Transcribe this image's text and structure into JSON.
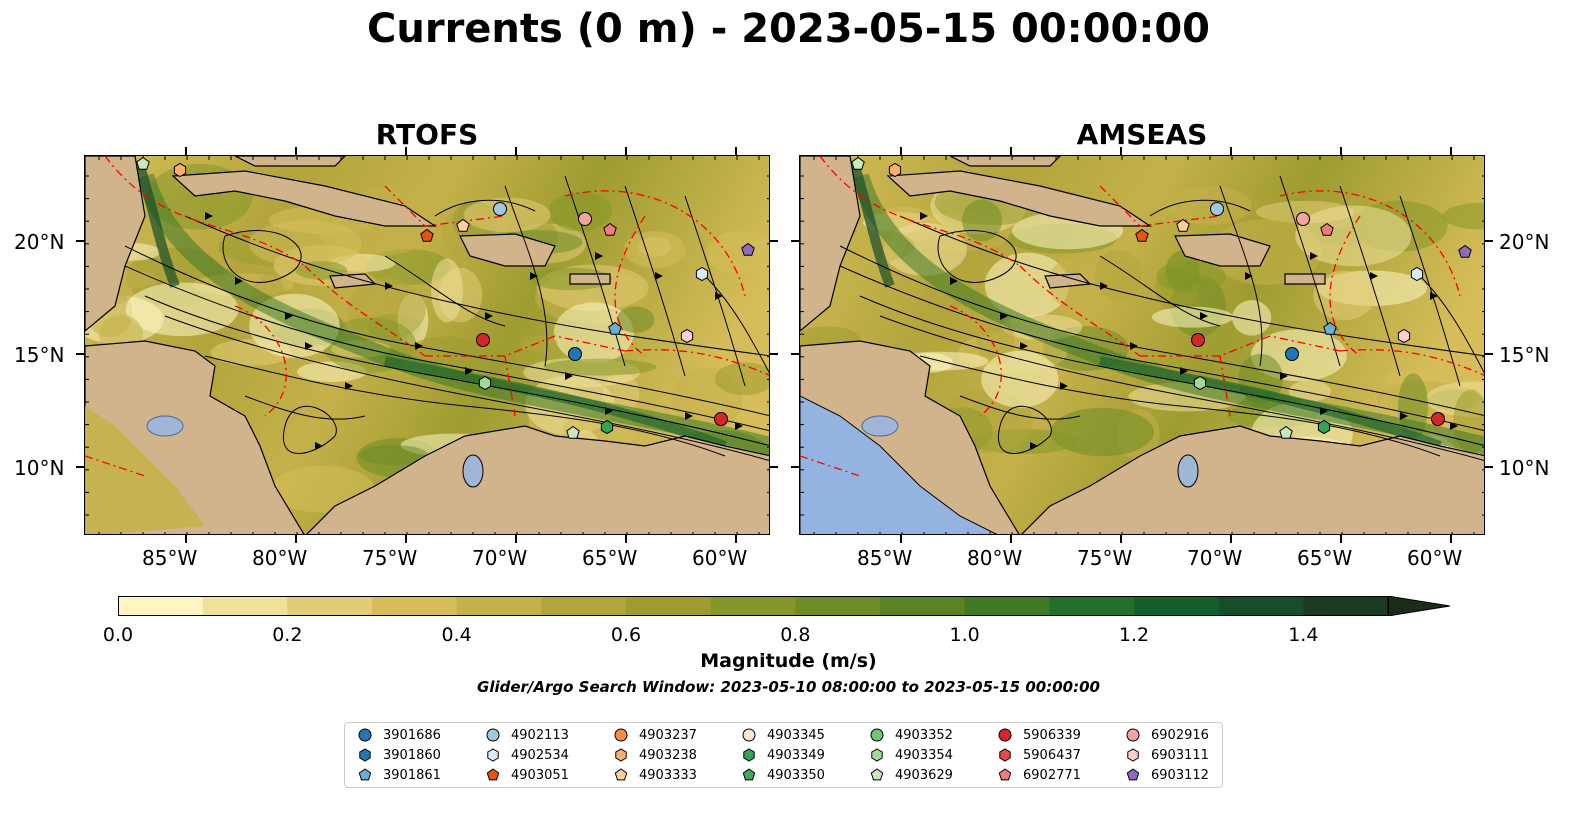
{
  "title": "Currents (0 m) - 2023-05-15 00:00:00",
  "panels": [
    {
      "id": "rtofs",
      "title": "RTOFS"
    },
    {
      "id": "amseas",
      "title": "AMSEAS"
    }
  ],
  "axes": {
    "lon_ticks": [
      "85°W",
      "80°W",
      "75°W",
      "70°W",
      "65°W",
      "60°W"
    ],
    "lat_ticks": [
      "20°N",
      "15°N",
      "10°N"
    ]
  },
  "colorbar": {
    "label": "Magnitude (m/s)",
    "ticks": [
      "0.0",
      "0.2",
      "0.4",
      "0.6",
      "0.8",
      "1.0",
      "1.2",
      "1.4"
    ],
    "min": 0.0,
    "max": 1.5,
    "extend": "max",
    "colors": [
      "#fdf6c3",
      "#f1e09a",
      "#e3cc77",
      "#d6bd5a",
      "#c5b14a",
      "#b2a53c",
      "#9e9c30",
      "#85972a",
      "#6f8d26",
      "#5a8424",
      "#3f7a27",
      "#236f2c",
      "#14602c",
      "#174d2a",
      "#1b3c22",
      "#1b2c18"
    ]
  },
  "subtitle": "Glider/Argo Search Window: 2023-05-10 08:00:00 to 2023-05-15 00:00:00",
  "colors": {
    "land": "#d2b48c",
    "ocean_open": "#93b4e0",
    "eez_line": "#ff0000",
    "coast": "#000000"
  },
  "legend": [
    {
      "id": "3901686",
      "marker": "circle",
      "color": "#1f77b4"
    },
    {
      "id": "3901860",
      "marker": "hexagon",
      "color": "#1f77b4"
    },
    {
      "id": "3901861",
      "marker": "pentagon",
      "color": "#6baed6"
    },
    {
      "id": "4902113",
      "marker": "circle",
      "color": "#9ecae1"
    },
    {
      "id": "4902534",
      "marker": "hexagon",
      "color": "#d6ecfa"
    },
    {
      "id": "4903051",
      "marker": "pentagon",
      "color": "#e6550d"
    },
    {
      "id": "4903237",
      "marker": "circle",
      "color": "#fd8d3c"
    },
    {
      "id": "4903238",
      "marker": "hexagon",
      "color": "#fdae6b"
    },
    {
      "id": "4903333",
      "marker": "pentagon",
      "color": "#fdd0a2"
    },
    {
      "id": "4903345",
      "marker": "circle",
      "color": "#fde5cf"
    },
    {
      "id": "4903349",
      "marker": "hexagon",
      "color": "#31a354"
    },
    {
      "id": "4903350",
      "marker": "pentagon",
      "color": "#41ab5d"
    },
    {
      "id": "4903352",
      "marker": "circle",
      "color": "#74c476"
    },
    {
      "id": "4903354",
      "marker": "hexagon",
      "color": "#a1d99b"
    },
    {
      "id": "4903629",
      "marker": "pentagon",
      "color": "#c7e9c0"
    },
    {
      "id": "5906339",
      "marker": "circle",
      "color": "#d62728"
    },
    {
      "id": "5906437",
      "marker": "hexagon",
      "color": "#e34a4a"
    },
    {
      "id": "6902771",
      "marker": "pentagon",
      "color": "#f07b7b"
    },
    {
      "id": "6902916",
      "marker": "circle",
      "color": "#f4a3a3"
    },
    {
      "id": "6903111",
      "marker": "hexagon",
      "color": "#fcd0d0"
    },
    {
      "id": "6903112",
      "marker": "pentagon",
      "color": "#8e6bbf"
    }
  ]
}
